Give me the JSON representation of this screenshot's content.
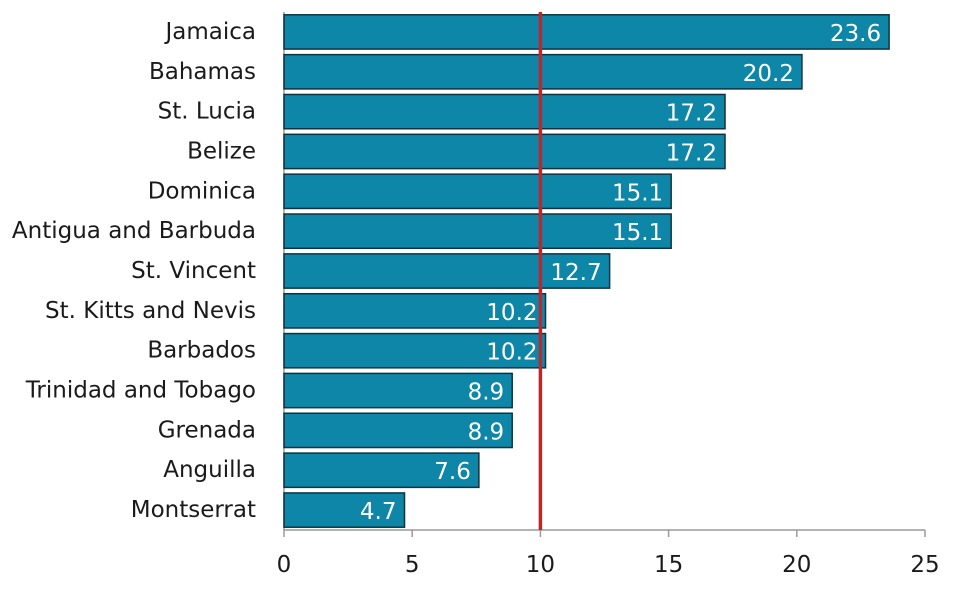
{
  "chart_data": {
    "type": "bar",
    "orientation": "horizontal",
    "title": "",
    "xlabel": "",
    "ylabel": "",
    "categories": [
      "Jamaica",
      "Bahamas",
      "St. Lucia",
      "Belize",
      "Dominica",
      "Antigua and Barbuda",
      "St. Vincent",
      "St. Kitts and Nevis",
      "Barbados",
      "Trinidad and Tobago",
      "Grenada",
      "Anguilla",
      "Montserrat"
    ],
    "values": [
      23.6,
      20.2,
      17.2,
      17.2,
      15.1,
      15.1,
      12.7,
      10.2,
      10.2,
      8.9,
      8.9,
      7.6,
      4.7
    ],
    "data_labels": [
      "23.6",
      "20.2",
      "17.2",
      "17.2",
      "15.1",
      "15.1",
      "12.7",
      "10.2",
      "10.2",
      "8.9",
      "8.9",
      "7.6",
      "4.7"
    ],
    "xlim": [
      0,
      25
    ],
    "xticks": [
      0,
      5,
      10,
      15,
      20,
      25
    ],
    "xtick_labels": [
      "0",
      "5",
      "10",
      "15",
      "20",
      "25"
    ],
    "reference_line": {
      "value": 10,
      "color": "#d01f1f"
    },
    "bar_color": "#0e86a8",
    "bar_edge_color": "#0b3442",
    "grid": false,
    "legend": "none"
  }
}
